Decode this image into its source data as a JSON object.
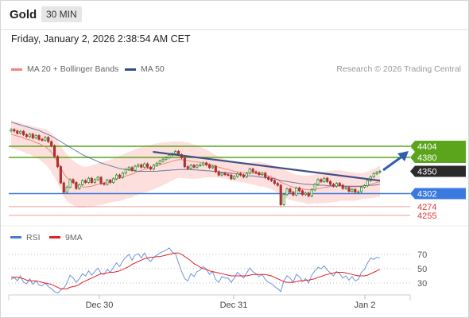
{
  "header": {
    "symbol": "Gold",
    "timeframe": "30 MIN"
  },
  "datetime": "Friday, January 2, 2026 2:38:54 AM CET",
  "legend": {
    "bollinger": {
      "label": "MA 20 + Bollinger Bands",
      "color": "#f4837d"
    },
    "ma50": {
      "label": "MA 50",
      "color": "#2f4e8a"
    }
  },
  "credit": "Research © 2026 Trading Central",
  "colors": {
    "up": "#2e8b2e",
    "down": "#b03030",
    "resistance": "#5aa51c",
    "support": "#3a7ae0",
    "lowlines": "#e53935",
    "target": "#2f5fa8"
  },
  "chart_data": [
    {
      "type": "candlestick",
      "title": "Gold",
      "x_labels": [
        "Dec 30",
        "Dec 31",
        "Jan 2"
      ],
      "ylim": [
        4225,
        4440
      ],
      "levels": [
        {
          "value": 4404,
          "label": "4404",
          "kind": "resistance"
        },
        {
          "value": 4380,
          "label": "4380",
          "kind": "resistance"
        },
        {
          "value": 4350,
          "label": "4350",
          "kind": "last-price"
        },
        {
          "value": 4302,
          "label": "4302",
          "kind": "pivot-support"
        },
        {
          "value": 4274,
          "label": "4274",
          "kind": "support"
        },
        {
          "value": 4255,
          "label": "4255",
          "kind": "support"
        }
      ],
      "close": [
        4440,
        4437,
        4432,
        4436,
        4429,
        4425,
        4430,
        4422,
        4427,
        4419,
        4417,
        4423,
        4414,
        4405,
        4382,
        4360,
        4325,
        4305,
        4316,
        4332,
        4326,
        4313,
        4321,
        4330,
        4326,
        4335,
        4326,
        4332,
        4337,
        4324,
        4322,
        4331,
        4326,
        4334,
        4342,
        4337,
        4346,
        4354,
        4358,
        4352,
        4361,
        4364,
        4359,
        4366,
        4359,
        4355,
        4363,
        4367,
        4372,
        4376,
        4379,
        4385,
        4388,
        4393,
        4386,
        4379,
        4360,
        4356,
        4363,
        4359,
        4363,
        4364,
        4368,
        4364,
        4358,
        4361,
        4349,
        4342,
        4346,
        4343,
        4342,
        4334,
        4339,
        4345,
        4342,
        4338,
        4346,
        4355,
        4349,
        4347,
        4343,
        4346,
        4337,
        4333,
        4330,
        4324,
        4320,
        4278,
        4300,
        4312,
        4305,
        4299,
        4314,
        4308,
        4300,
        4303,
        4297,
        4310,
        4322,
        4332,
        4328,
        4335,
        4328,
        4322,
        4318,
        4324,
        4320,
        4313,
        4315,
        4307,
        4311,
        4305,
        4306,
        4316,
        4319,
        4330,
        4338,
        4345,
        4348,
        4350
      ],
      "ma20": [
        4430,
        4428,
        4426,
        4425,
        4422,
        4419,
        4418,
        4415,
        4412,
        4410,
        4406,
        4403,
        4398,
        4391,
        4381,
        4370,
        4358,
        4345,
        4336,
        4330,
        4325,
        4321,
        4318,
        4316,
        4316,
        4317,
        4318,
        4320,
        4322,
        4323,
        4325,
        4327,
        4329,
        4331,
        4333,
        4335,
        4337,
        4340,
        4342,
        4344,
        4347,
        4350,
        4352,
        4354,
        4356,
        4358,
        4360,
        4362,
        4364,
        4366,
        4368,
        4370,
        4372,
        4374,
        4375,
        4375,
        4374,
        4373,
        4372,
        4371,
        4370,
        4369,
        4368,
        4367,
        4365,
        4363,
        4361,
        4359,
        4357,
        4355,
        4354,
        4352,
        4350,
        4349,
        4348,
        4347,
        4346,
        4346,
        4346,
        4345,
        4344,
        4343,
        4342,
        4340,
        4338,
        4335,
        4332,
        4327,
        4324,
        4321,
        4318,
        4316,
        4314,
        4313,
        4312,
        4311,
        4310,
        4311,
        4312,
        4313,
        4314,
        4315,
        4316,
        4317,
        4318,
        4318,
        4319,
        4319,
        4318,
        4318,
        4317,
        4317,
        4317,
        4318,
        4319,
        4320,
        4322,
        4324,
        4326,
        4328
      ],
      "ma50": [
        4456,
        4454,
        4452,
        4450,
        4448,
        4446,
        4444,
        4442,
        4440,
        4438,
        4435,
        4432,
        4429,
        4426,
        4422,
        4418,
        4414,
        4410,
        4406,
        4402,
        4398,
        4394,
        4390,
        4386,
        4383,
        4380,
        4377,
        4374,
        4371,
        4368,
        4366,
        4364,
        4362,
        4360,
        4358,
        4356,
        4355,
        4354,
        4353,
        4352,
        4351,
        4350,
        4350,
        4350,
        4350,
        4350,
        4350,
        4350,
        4351,
        4351,
        4352,
        4352,
        4353,
        4353,
        4354,
        4354,
        4354,
        4354,
        4354,
        4353,
        4353,
        4352,
        4352,
        4351,
        4351,
        4350,
        4350,
        4349,
        4348,
        4347,
        4347,
        4346,
        4345,
        4344,
        4343,
        4342,
        4341,
        4340,
        4340,
        4339,
        4338,
        4337,
        4337,
        4336,
        4335,
        4334,
        4332,
        4330,
        4329,
        4328,
        4327,
        4326,
        4325,
        4324,
        4323,
        4322,
        4322,
        4321,
        4321,
        4320,
        4320,
        4320,
        4319,
        4319,
        4319,
        4319,
        4319,
        4318,
        4318,
        4318,
        4318,
        4318,
        4318,
        4318,
        4319,
        4319,
        4320,
        4320,
        4321,
        4322
      ],
      "upper_band": [
        4460,
        4458,
        4456,
        4455,
        4452,
        4450,
        4449,
        4447,
        4445,
        4444,
        4442,
        4441,
        4438,
        4433,
        4425,
        4415,
        4405,
        4395,
        4386,
        4379,
        4373,
        4368,
        4364,
        4361,
        4360,
        4361,
        4363,
        4365,
        4367,
        4369,
        4371,
        4373,
        4375,
        4378,
        4381,
        4384,
        4386,
        4389,
        4392,
        4394,
        4397,
        4400,
        4402,
        4404,
        4406,
        4407,
        4409,
        4410,
        4411,
        4412,
        4413,
        4413,
        4414,
        4414,
        4414,
        4414,
        4413,
        4412,
        4410,
        4408,
        4406,
        4403,
        4400,
        4397,
        4393,
        4389,
        4385,
        4382,
        4379,
        4376,
        4374,
        4372,
        4371,
        4370,
        4369,
        4368,
        4368,
        4369,
        4370,
        4370,
        4370,
        4369,
        4368,
        4366,
        4364,
        4362,
        4360,
        4357,
        4354,
        4351,
        4348,
        4345,
        4343,
        4342,
        4341,
        4341,
        4341,
        4342,
        4343,
        4345,
        4347,
        4349,
        4350,
        4351,
        4352,
        4352,
        4352,
        4351,
        4350,
        4349,
        4348,
        4347,
        4346,
        4346,
        4347,
        4349,
        4352,
        4355,
        4358,
        4362
      ],
      "lower_band": [
        4400,
        4398,
        4396,
        4395,
        4392,
        4388,
        4387,
        4383,
        4379,
        4376,
        4370,
        4365,
        4358,
        4349,
        4337,
        4325,
        4311,
        4295,
        4286,
        4281,
        4277,
        4274,
        4272,
        4271,
        4272,
        4273,
        4273,
        4275,
        4277,
        4277,
        4279,
        4281,
        4283,
        4284,
        4285,
        4286,
        4288,
        4291,
        4292,
        4294,
        4297,
        4300,
        4302,
        4304,
        4306,
        4309,
        4311,
        4314,
        4317,
        4320,
        4323,
        4327,
        4330,
        4334,
        4336,
        4336,
        4335,
        4334,
        4334,
        4334,
        4334,
        4335,
        4336,
        4337,
        4337,
        4337,
        4337,
        4336,
        4335,
        4334,
        4334,
        4332,
        4329,
        4328,
        4327,
        4326,
        4324,
        4323,
        4322,
        4320,
        4318,
        4317,
        4316,
        4314,
        4312,
        4308,
        4304,
        4297,
        4294,
        4291,
        4288,
        4287,
        4285,
        4284,
        4283,
        4281,
        4279,
        4280,
        4281,
        4281,
        4281,
        4281,
        4282,
        4283,
        4284,
        4284,
        4286,
        4287,
        4286,
        4287,
        4286,
        4287,
        4288,
        4290,
        4291,
        4291,
        4292,
        4293,
        4294,
        4294
      ]
    },
    {
      "type": "line",
      "title": "RSI",
      "series_names": [
        "RSI",
        "9MA"
      ],
      "ylim": [
        10,
        85
      ],
      "y_ticks": [
        70,
        50,
        30
      ],
      "x_labels": [
        "Dec 30",
        "Dec 31",
        "Jan 2"
      ],
      "rsi": [
        35,
        38,
        33,
        40,
        31,
        29,
        36,
        28,
        33,
        27,
        26,
        30,
        25,
        22,
        18,
        16,
        20,
        23,
        30,
        41,
        37,
        31,
        36,
        43,
        40,
        47,
        41,
        46,
        51,
        43,
        42,
        49,
        45,
        52,
        58,
        53,
        61,
        66,
        70,
        62,
        69,
        71,
        65,
        72,
        64,
        60,
        66,
        69,
        72,
        74,
        76,
        79,
        73,
        71,
        58,
        46,
        36,
        33,
        43,
        39,
        46,
        48,
        53,
        49,
        42,
        46,
        35,
        31,
        39,
        37,
        37,
        31,
        37,
        45,
        41,
        37,
        44,
        51,
        46,
        43,
        39,
        42,
        35,
        31,
        29,
        25,
        22,
        18,
        33,
        40,
        37,
        31,
        42,
        39,
        32,
        36,
        30,
        41,
        47,
        52,
        50,
        54,
        48,
        44,
        40,
        46,
        43,
        37,
        40,
        34,
        39,
        33,
        35,
        45,
        49,
        58,
        65,
        63,
        66,
        65
      ],
      "ma9": [
        38,
        38,
        38,
        37,
        36,
        34,
        33,
        33,
        33,
        32,
        31,
        30,
        29,
        28,
        26,
        24,
        22,
        22,
        22,
        24,
        25,
        26,
        28,
        31,
        33,
        35,
        37,
        39,
        41,
        43,
        43,
        44,
        45,
        45,
        46,
        47,
        49,
        51,
        53,
        56,
        58,
        60,
        62,
        64,
        65,
        66,
        66,
        67,
        67,
        68,
        69,
        70,
        71,
        72,
        72,
        70,
        67,
        64,
        61,
        57,
        55,
        52,
        50,
        49,
        47,
        46,
        45,
        44,
        43,
        42,
        41,
        40,
        40,
        40,
        40,
        40,
        40,
        41,
        42,
        42,
        42,
        42,
        42,
        41,
        40,
        38,
        36,
        34,
        32,
        31,
        31,
        31,
        32,
        33,
        33,
        34,
        34,
        35,
        36,
        38,
        39,
        41,
        42,
        43,
        44,
        45,
        45,
        45,
        44,
        43,
        42,
        41,
        40,
        40,
        40,
        41,
        43,
        45,
        47,
        49
      ]
    }
  ]
}
